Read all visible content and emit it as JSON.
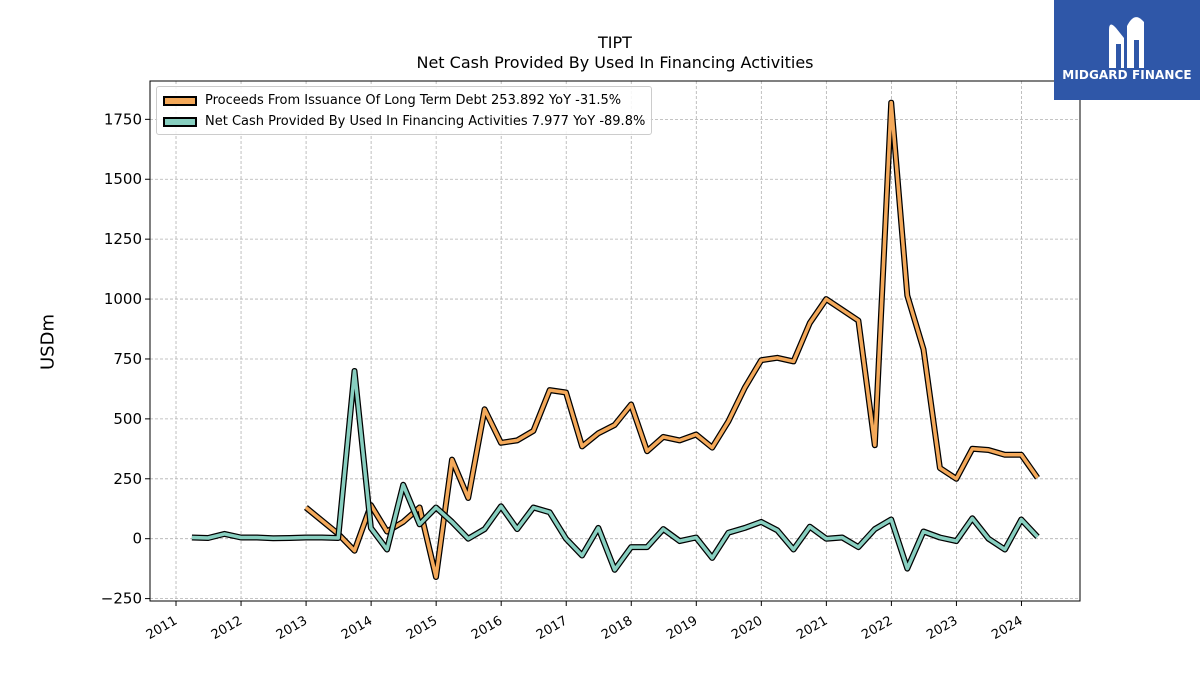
{
  "brand": {
    "name": "MIDGARD FINANCE",
    "bg_color": "#2f57a8",
    "icon": "midgard-m-logo-icon"
  },
  "chart_data": {
    "type": "line",
    "title": "TIPT",
    "subtitle": "Net Cash Provided By Used In Financing Activities",
    "ylabel": "USDm",
    "xlabel": "",
    "ylim": [
      -260,
      1910
    ],
    "xlim": [
      2010.6,
      2024.9
    ],
    "yticks": [
      -250,
      0,
      250,
      500,
      750,
      1000,
      1250,
      1500,
      1750
    ],
    "xticks": [
      "2011",
      "2012",
      "2013",
      "2014",
      "2015",
      "2016",
      "2017",
      "2018",
      "2019",
      "2020",
      "2021",
      "2022",
      "2023",
      "2024"
    ],
    "grid": true,
    "legend_position": "top-left",
    "series": [
      {
        "name": "Proceeds From Issuance Of Long Term Debt",
        "legend_label": "Proceeds From Issuance Of Long Term Debt  253.892 YoY -31.5%",
        "color": "#f4a95a",
        "points": [
          [
            "2012-12-31",
            130
          ],
          [
            "2013-06-30",
            20
          ],
          [
            "2013-09-30",
            -50
          ],
          [
            "2013-12-31",
            140
          ],
          [
            "2014-03-31",
            30
          ],
          [
            "2014-06-30",
            70
          ],
          [
            "2014-09-30",
            130
          ],
          [
            "2014-12-31",
            -160
          ],
          [
            "2015-03-31",
            330
          ],
          [
            "2015-06-30",
            170
          ],
          [
            "2015-09-30",
            540
          ],
          [
            "2015-12-31",
            400
          ],
          [
            "2016-03-31",
            410
          ],
          [
            "2016-06-30",
            450
          ],
          [
            "2016-09-30",
            620
          ],
          [
            "2016-12-31",
            610
          ],
          [
            "2017-03-31",
            385
          ],
          [
            "2017-06-30",
            440
          ],
          [
            "2017-09-30",
            475
          ],
          [
            "2017-12-31",
            560
          ],
          [
            "2018-03-31",
            365
          ],
          [
            "2018-06-30",
            425
          ],
          [
            "2018-09-30",
            410
          ],
          [
            "2018-12-31",
            435
          ],
          [
            "2019-03-31",
            380
          ],
          [
            "2019-06-30",
            490
          ],
          [
            "2019-09-30",
            630
          ],
          [
            "2019-12-31",
            745
          ],
          [
            "2020-03-31",
            755
          ],
          [
            "2020-06-30",
            740
          ],
          [
            "2020-09-30",
            900
          ],
          [
            "2020-12-31",
            1000
          ],
          [
            "2021-03-31",
            955
          ],
          [
            "2021-06-30",
            910
          ],
          [
            "2021-09-30",
            390
          ],
          [
            "2021-12-31",
            1820
          ],
          [
            "2022-03-31",
            1015
          ],
          [
            "2022-06-30",
            790
          ],
          [
            "2022-09-30",
            295
          ],
          [
            "2022-12-31",
            250
          ],
          [
            "2023-03-31",
            375
          ],
          [
            "2023-06-30",
            370
          ],
          [
            "2023-09-30",
            350
          ],
          [
            "2023-12-31",
            350
          ],
          [
            "2024-03-31",
            254
          ]
        ]
      },
      {
        "name": "Net Cash Provided By Used In Financing Activities",
        "legend_label": "Net Cash Provided By Used In Financing Activities  7.977 YoY -89.8%",
        "color": "#88cfc0",
        "points": [
          [
            "2011-03-31",
            5
          ],
          [
            "2011-06-30",
            3
          ],
          [
            "2011-09-30",
            20
          ],
          [
            "2011-12-31",
            5
          ],
          [
            "2012-03-31",
            5
          ],
          [
            "2012-06-30",
            2
          ],
          [
            "2012-09-30",
            3
          ],
          [
            "2012-12-31",
            5
          ],
          [
            "2013-03-31",
            5
          ],
          [
            "2013-06-30",
            3
          ],
          [
            "2013-09-30",
            700
          ],
          [
            "2013-12-31",
            45
          ],
          [
            "2014-03-31",
            -45
          ],
          [
            "2014-06-30",
            225
          ],
          [
            "2014-09-30",
            60
          ],
          [
            "2014-12-31",
            130
          ],
          [
            "2015-03-31",
            70
          ],
          [
            "2015-06-30",
            0
          ],
          [
            "2015-09-30",
            40
          ],
          [
            "2015-12-31",
            135
          ],
          [
            "2016-03-31",
            40
          ],
          [
            "2016-06-30",
            130
          ],
          [
            "2016-09-30",
            110
          ],
          [
            "2016-12-31",
            0
          ],
          [
            "2017-03-31",
            -70
          ],
          [
            "2017-06-30",
            45
          ],
          [
            "2017-09-30",
            -130
          ],
          [
            "2017-12-31",
            -35
          ],
          [
            "2018-03-31",
            -35
          ],
          [
            "2018-06-30",
            40
          ],
          [
            "2018-09-30",
            -10
          ],
          [
            "2018-12-31",
            5
          ],
          [
            "2019-03-31",
            -80
          ],
          [
            "2019-06-30",
            25
          ],
          [
            "2019-09-30",
            45
          ],
          [
            "2019-12-31",
            70
          ],
          [
            "2020-03-31",
            35
          ],
          [
            "2020-06-30",
            -45
          ],
          [
            "2020-09-30",
            50
          ],
          [
            "2020-12-31",
            0
          ],
          [
            "2021-03-31",
            5
          ],
          [
            "2021-06-30",
            -35
          ],
          [
            "2021-09-30",
            40
          ],
          [
            "2021-12-31",
            80
          ],
          [
            "2022-03-31",
            -125
          ],
          [
            "2022-06-30",
            30
          ],
          [
            "2022-09-30",
            5
          ],
          [
            "2022-12-31",
            -10
          ],
          [
            "2023-03-31",
            85
          ],
          [
            "2023-06-30",
            0
          ],
          [
            "2023-09-30",
            -45
          ],
          [
            "2023-12-31",
            80
          ],
          [
            "2024-03-31",
            8
          ]
        ]
      }
    ]
  }
}
